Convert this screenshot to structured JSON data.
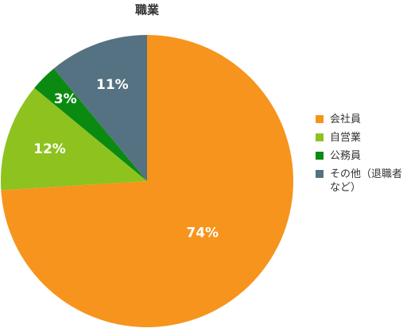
{
  "chart_data": {
    "type": "pie",
    "title": "職業",
    "categories": [
      "会社員",
      "自営業",
      "公務員",
      "その他（退職者など）"
    ],
    "values": [
      74,
      12,
      3,
      11
    ],
    "value_labels": [
      "74%",
      "12%",
      "3%",
      "11%"
    ],
    "colors": [
      "#f7941d",
      "#8dc21f",
      "#0b8a12",
      "#557282"
    ],
    "legend": "right"
  }
}
